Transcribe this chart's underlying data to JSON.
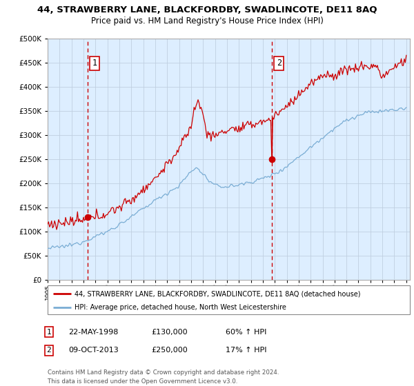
{
  "title": "44, STRAWBERRY LANE, BLACKFORDBY, SWADLINCOTE, DE11 8AQ",
  "subtitle": "Price paid vs. HM Land Registry's House Price Index (HPI)",
  "legend_red": "44, STRAWBERRY LANE, BLACKFORDBY, SWADLINCOTE, DE11 8AQ (detached house)",
  "legend_blue": "HPI: Average price, detached house, North West Leicestershire",
  "purchase1_date": "22-MAY-1998",
  "purchase1_price": 130000,
  "purchase1_label": "1",
  "purchase1_pct": "60% ↑ HPI",
  "purchase2_date": "09-OCT-2013",
  "purchase2_price": 250000,
  "purchase2_label": "2",
  "purchase2_pct": "17% ↑ HPI",
  "footnote1": "Contains HM Land Registry data © Crown copyright and database right 2024.",
  "footnote2": "This data is licensed under the Open Government Licence v3.0.",
  "red_color": "#cc0000",
  "blue_color": "#7aadd4",
  "bg_color": "#ddeeff",
  "grid_color": "#c0cfe0",
  "box_color": "#cc0000",
  "ylim": [
    0,
    500000
  ],
  "yticks": [
    0,
    50000,
    100000,
    150000,
    200000,
    250000,
    300000,
    350000,
    400000,
    450000,
    500000
  ],
  "xstart": 1995,
  "xend": 2025
}
